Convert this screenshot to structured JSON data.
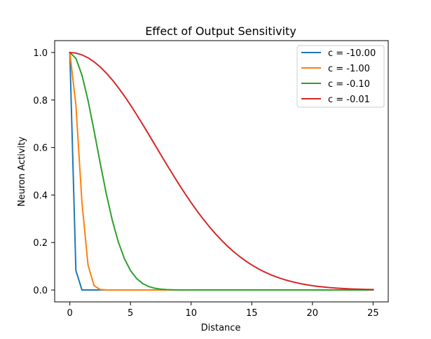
{
  "chart_data": {
    "type": "line",
    "title": "Effect of Output Sensitivity",
    "xlabel": "Distance",
    "ylabel": "Neuron Activity",
    "xlim": [
      -1.25,
      26.25
    ],
    "ylim": [
      -0.05,
      1.05
    ],
    "xticks": [
      0,
      5,
      10,
      15,
      20,
      25
    ],
    "yticks": [
      0.0,
      0.2,
      0.4,
      0.6,
      0.8,
      1.0
    ],
    "xtick_labels": [
      "0",
      "5",
      "10",
      "15",
      "20",
      "25"
    ],
    "ytick_labels": [
      "0.0",
      "0.2",
      "0.4",
      "0.6",
      "0.8",
      "1.0"
    ],
    "grid": false,
    "legend": "top-right",
    "x": [
      0,
      0.5,
      1,
      1.5,
      2,
      2.5,
      3,
      3.5,
      4,
      4.5,
      5,
      5.5,
      6,
      6.5,
      7,
      7.5,
      8,
      8.5,
      9,
      9.5,
      10,
      10.5,
      11,
      11.5,
      12,
      12.5,
      13,
      13.5,
      14,
      14.5,
      15,
      15.5,
      16,
      16.5,
      17,
      17.5,
      18,
      18.5,
      19,
      19.5,
      20,
      20.5,
      21,
      21.5,
      22,
      22.5,
      23,
      23.5,
      24,
      24.5,
      25
    ],
    "series": [
      {
        "name": "c = -10.00",
        "color": "#1f77b4",
        "values": [
          1.0,
          0.0821,
          0.0,
          0.0,
          0.0,
          0.0,
          0.0,
          0.0,
          0.0,
          0.0,
          0.0,
          0.0,
          0.0,
          0.0,
          0.0,
          0.0,
          0.0,
          0.0,
          0.0,
          0.0,
          0.0,
          0.0,
          0.0,
          0.0,
          0.0,
          0.0,
          0.0,
          0.0,
          0.0,
          0.0,
          0.0,
          0.0,
          0.0,
          0.0,
          0.0,
          0.0,
          0.0,
          0.0,
          0.0,
          0.0,
          0.0,
          0.0,
          0.0,
          0.0,
          0.0,
          0.0,
          0.0,
          0.0,
          0.0,
          0.0,
          0.0
        ]
      },
      {
        "name": "c = -1.00",
        "color": "#ff7f0e",
        "values": [
          1.0,
          0.7788,
          0.3679,
          0.1054,
          0.0183,
          0.0019,
          0.0001,
          0.0,
          0.0,
          0.0,
          0.0,
          0.0,
          0.0,
          0.0,
          0.0,
          0.0,
          0.0,
          0.0,
          0.0,
          0.0,
          0.0,
          0.0,
          0.0,
          0.0,
          0.0,
          0.0,
          0.0,
          0.0,
          0.0,
          0.0,
          0.0,
          0.0,
          0.0,
          0.0,
          0.0,
          0.0,
          0.0,
          0.0,
          0.0,
          0.0,
          0.0,
          0.0,
          0.0,
          0.0,
          0.0,
          0.0,
          0.0,
          0.0,
          0.0,
          0.0,
          0.0
        ]
      },
      {
        "name": "c = -0.10",
        "color": "#2ca02c",
        "values": [
          1.0,
          0.9753,
          0.9048,
          0.7985,
          0.6703,
          0.5353,
          0.4066,
          0.2938,
          0.2019,
          0.132,
          0.0821,
          0.0486,
          0.0273,
          0.0146,
          0.0074,
          0.0036,
          0.0017,
          0.0007,
          0.0003,
          0.0001,
          0.0,
          0.0,
          0.0,
          0.0,
          0.0,
          0.0,
          0.0,
          0.0,
          0.0,
          0.0,
          0.0,
          0.0,
          0.0,
          0.0,
          0.0,
          0.0,
          0.0,
          0.0,
          0.0,
          0.0,
          0.0,
          0.0,
          0.0,
          0.0,
          0.0,
          0.0,
          0.0,
          0.0,
          0.0,
          0.0,
          0.0
        ]
      },
      {
        "name": "c = -0.01",
        "color": "#d62728",
        "values": [
          1.0,
          0.9975,
          0.99,
          0.9778,
          0.9608,
          0.9394,
          0.9139,
          0.8847,
          0.8521,
          0.8167,
          0.7788,
          0.7389,
          0.6977,
          0.6554,
          0.6126,
          0.5698,
          0.5273,
          0.4856,
          0.4449,
          0.4056,
          0.3679,
          0.332,
          0.2982,
          0.2665,
          0.2369,
          0.2096,
          0.1845,
          0.1616,
          0.1409,
          0.1222,
          0.1054,
          0.0905,
          0.0773,
          0.0657,
          0.0556,
          0.0468,
          0.0392,
          0.0327,
          0.0271,
          0.0223,
          0.0183,
          0.015,
          0.0122,
          0.0098,
          0.0079,
          0.0063,
          0.005,
          0.004,
          0.0032,
          0.0025,
          0.0019
        ]
      }
    ]
  }
}
